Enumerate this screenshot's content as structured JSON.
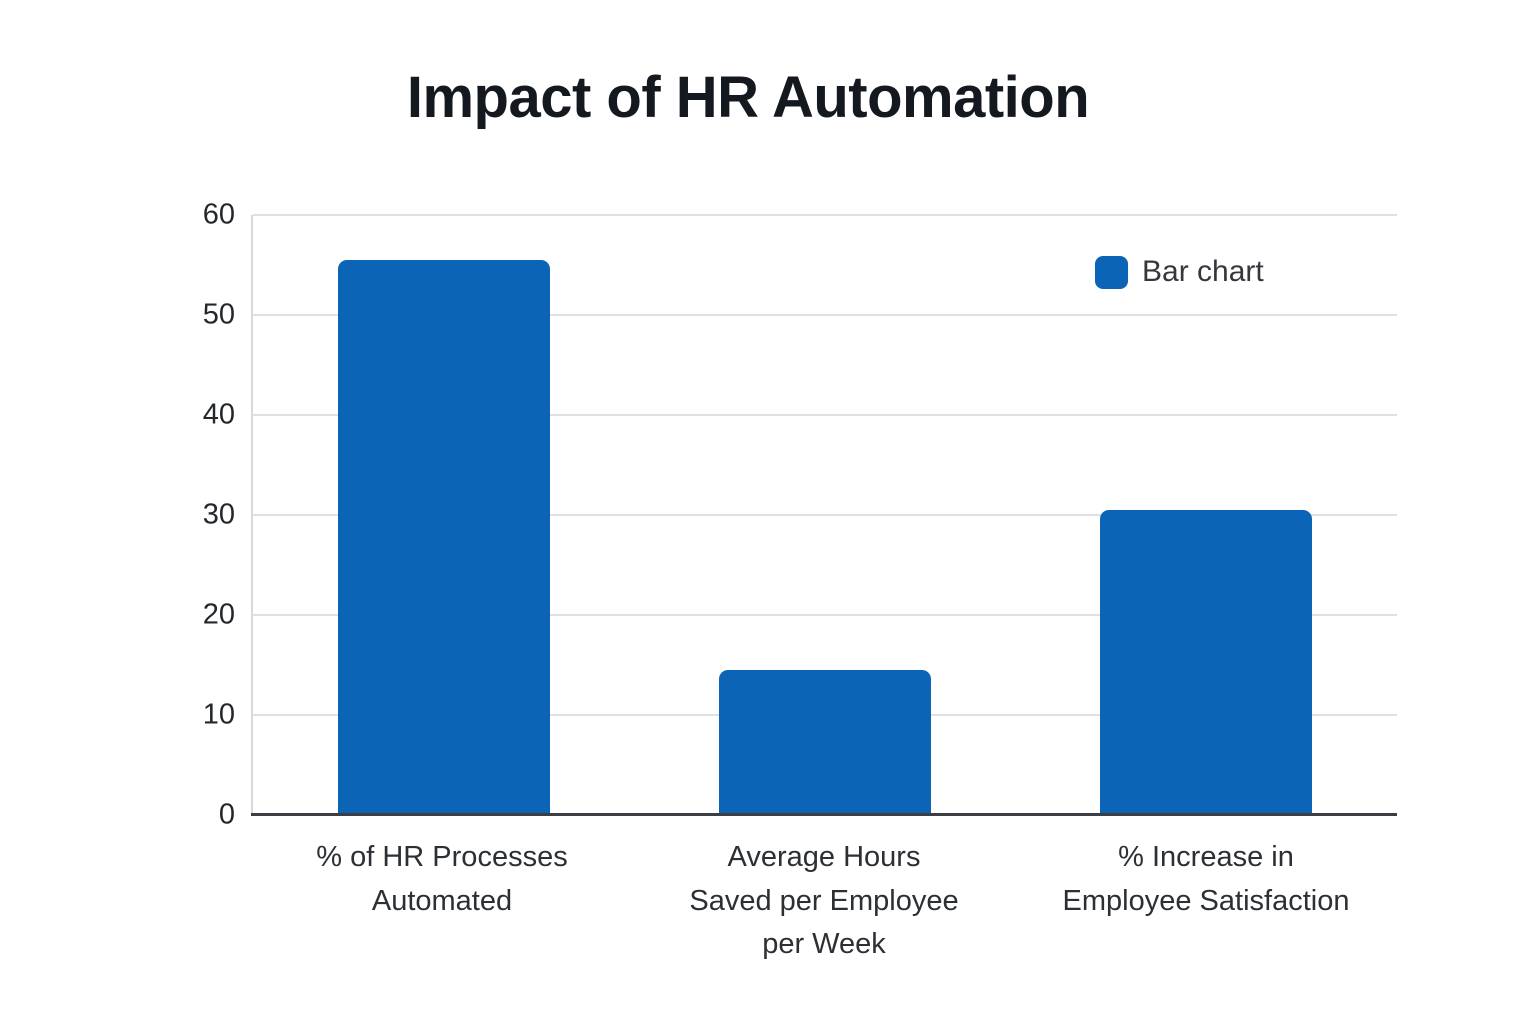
{
  "chart_data": {
    "type": "bar",
    "title": "Impact of HR Automation",
    "categories": [
      "% of HR Processes\nAutomated",
      "Average Hours\nSaved per Employee\nper Week",
      "% Increase in\nEmployee Satisfaction"
    ],
    "values": [
      55.5,
      14.5,
      30.5
    ],
    "yticks": [
      0,
      10,
      20,
      30,
      40,
      50,
      60
    ],
    "ylim": [
      0,
      60
    ],
    "xlabel": "",
    "ylabel": "",
    "grid": "horizontal",
    "legend": {
      "label": "Bar chart",
      "position": "top-right"
    },
    "colors": {
      "bar": "#0c64b6",
      "title_text": "#141920",
      "tick_text": "#24282d",
      "category_text": "#2c3034",
      "legend_text": "#34383c",
      "gridline": "#dde1e4",
      "y_spine": "#d6dadd",
      "x_axis_line": "#3b3e42",
      "background": "#ffffff"
    }
  }
}
